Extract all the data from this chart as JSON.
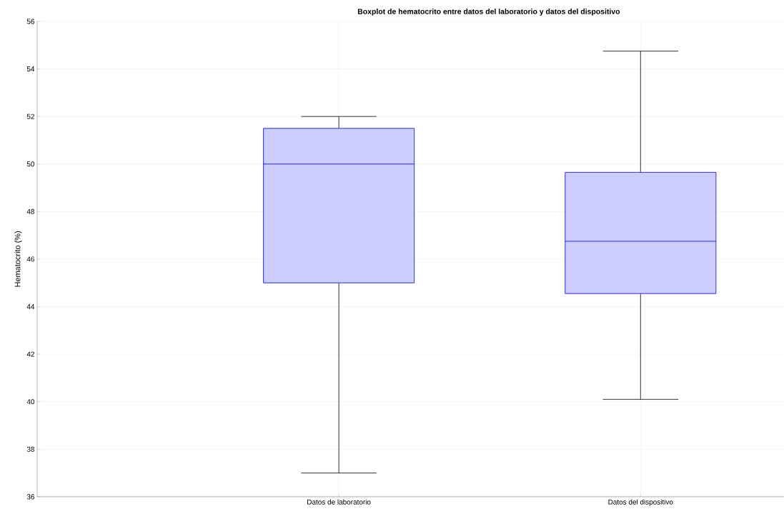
{
  "chart_data": {
    "type": "box",
    "title": "Boxplot de hematocrito entre datos del laboratorio y datos del dispositivo",
    "ylabel": "Hematocrito (%)",
    "categories": [
      "Datos de laboratorio",
      "Datos del dispositivo"
    ],
    "boxes": [
      {
        "low": 37,
        "q1": 45,
        "median": 50,
        "q3": 51.5,
        "high": 52
      },
      {
        "low": 40.1,
        "q1": 44.55,
        "median": 46.75,
        "q3": 49.65,
        "high": 54.75
      }
    ],
    "color": "#0000ff",
    "ylim": [
      36,
      56
    ],
    "yticks": [
      36,
      38,
      40,
      42,
      44,
      46,
      48,
      50,
      52,
      54,
      56
    ],
    "grid": true
  }
}
